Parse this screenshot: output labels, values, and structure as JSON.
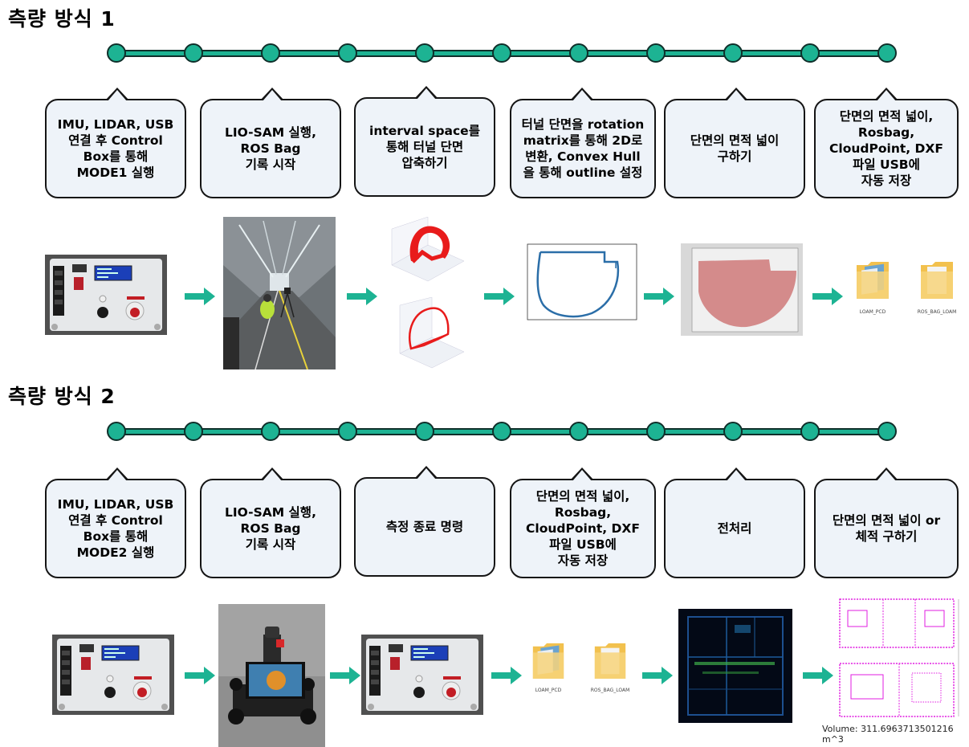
{
  "sections": [
    {
      "title": "측량 방식 1",
      "steps": [
        "IMU, LIDAR, USB\n연결 후 Control\nBox를 통해\nMODE1 실행",
        "LIO-SAM 실행,\nROS Bag\n기록 시작",
        "interval space를\n통해 터널 단면\n압축하기",
        "터널 단면을 rotation\nmatrix를 통해 2D로\n변환, Convex Hull\n을 통해 outline 설정",
        "단면의 면적 넓이\n구하기",
        "단면의 면적 넓이,\nRosbag,\nCloudPoint, DXF\n파일 USB에\n자동 저장"
      ],
      "folders": [
        "LOAM_PCD",
        "ROS_BAG_LOAM"
      ]
    },
    {
      "title": "측량 방식 2",
      "steps": [
        "IMU, LIDAR, USB\n연결 후 Control\nBox를 통해\nMODE2 실행",
        "LIO-SAM 실행,\nROS Bag\n기록 시작",
        "측정 종료 명령",
        "단면의 면적 넓이,\nRosbag,\nCloudPoint, DXF\n파일 USB에\n자동 저장",
        "전처리",
        "단면의 면적 넓이 or\n체적 구하기"
      ],
      "folders": [
        "LOAM_PCD",
        "ROS_BAG_LOAM"
      ],
      "volume_text": "Volume: 311.6963713501216 m^3"
    }
  ],
  "colors": {
    "accent": "#1db393",
    "callout_fill": "#eef3f9",
    "area_fill": "#d48b8b",
    "scan_line": "#2b6ea8"
  }
}
